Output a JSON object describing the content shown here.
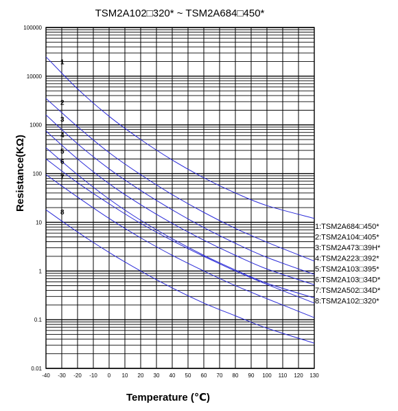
{
  "chart_data": {
    "type": "line",
    "title": "TSM2A102□320* ~ TSM2A684□450*",
    "xlabel": "Temperature (℃)",
    "ylabel": "Resistance(KΩ)",
    "xlim": [
      -40,
      130
    ],
    "ylim": [
      0.01,
      100000
    ],
    "yscale": "log",
    "grid": true,
    "legend_position": "right",
    "x_ticks": [
      "-40",
      "-30",
      "-20",
      "-10",
      "0",
      "10",
      "20",
      "30",
      "40",
      "50",
      "60",
      "70",
      "80",
      "90",
      "100",
      "110",
      "120",
      "130"
    ],
    "y_ticks": [
      "0.01",
      "0.1",
      "1",
      "10",
      "100",
      "1000",
      "10000",
      "100000"
    ],
    "x": [
      -40,
      -20,
      0,
      20,
      40,
      60,
      80,
      100,
      130
    ],
    "series": [
      {
        "name": "1:TSM2A684□450*",
        "label": "1",
        "values": [
          25000,
          5500,
          1500,
          500,
          190,
          82,
          40,
          22,
          12
        ]
      },
      {
        "name": "2:TSM2A104□405*",
        "label": "2",
        "values": [
          3500,
          920,
          270,
          95,
          37,
          16,
          7.5,
          3.9,
          1.6
        ]
      },
      {
        "name": "3:TSM2A473□39H*",
        "label": "3",
        "values": [
          1600,
          410,
          125,
          45,
          18,
          7.8,
          3.7,
          1.9,
          0.85
        ]
      },
      {
        "name": "4:TSM2A223□392*",
        "label": "4",
        "values": [
          750,
          200,
          62,
          23,
          9.5,
          4.3,
          2.1,
          1.1,
          0.52
        ]
      },
      {
        "name": "5:TSM2A103□395*",
        "label": "5",
        "values": [
          340,
          95,
          30,
          11,
          4.6,
          2.1,
          1.05,
          0.56,
          0.28
        ]
      },
      {
        "name": "6:TSM2A103□34D*",
        "label": "6",
        "values": [
          200,
          65,
          24,
          9.5,
          4.2,
          2.0,
          1.0,
          0.53,
          0.22
        ]
      },
      {
        "name": "7:TSM2A502□34D*",
        "label": "7",
        "values": [
          95,
          33,
          12,
          4.8,
          2.1,
          1.0,
          0.5,
          0.27,
          0.11
        ]
      },
      {
        "name": "8:TSM2A102□320*",
        "label": "8",
        "values": [
          18,
          6.3,
          2.4,
          1.0,
          0.45,
          0.22,
          0.12,
          0.067,
          0.033
        ]
      }
    ],
    "line_color": "#2a2ad8"
  }
}
